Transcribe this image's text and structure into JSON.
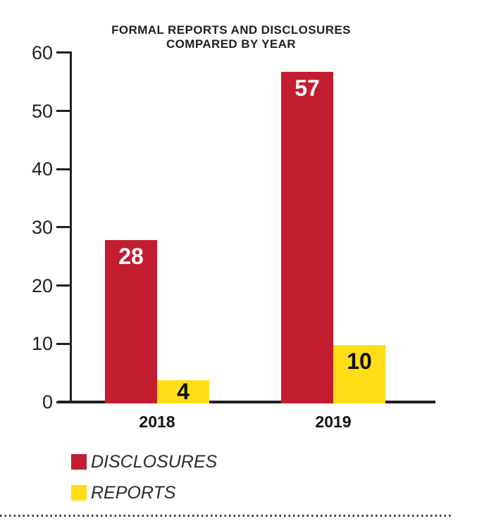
{
  "chart_data": {
    "type": "bar",
    "title": "FORMAL REPORTS AND DISCLOSURES",
    "subtitle": "COMPARED BY YEAR",
    "categories": [
      "2018",
      "2019"
    ],
    "series": [
      {
        "name": "DISCLOSURES",
        "color": "#C21E30",
        "values": [
          28,
          57
        ],
        "value_label_color": "#FFFFFF"
      },
      {
        "name": "REPORTS",
        "color": "#FFDD17",
        "values": [
          4,
          10
        ],
        "value_label_color": "#111111"
      }
    ],
    "xlabel": "",
    "ylabel": "",
    "ylim": [
      0,
      60
    ],
    "yticks": [
      0,
      10,
      20,
      30,
      40,
      50,
      60
    ],
    "grid": false,
    "legend_position": "bottom-left",
    "value_labels": "inside-top",
    "axis_color": "#231F20",
    "background_color": "#FFFFFF"
  }
}
